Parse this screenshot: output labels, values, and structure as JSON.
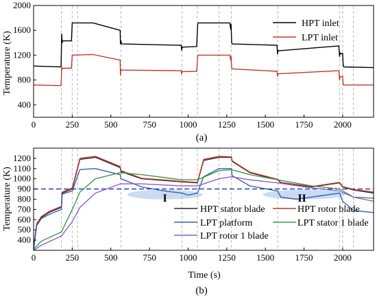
{
  "chart_data": [
    {
      "type": "line",
      "panel_label": "(a)",
      "ylabel": "Temperature (K)",
      "xlabel": "",
      "xlim": [
        0,
        2200
      ],
      "ylim": [
        200,
        2000
      ],
      "xticks": [
        0,
        250,
        500,
        750,
        1000,
        1250,
        1500,
        1750,
        2000
      ],
      "yticks": [
        400,
        800,
        1200,
        1600,
        2000
      ],
      "legend_position": "top-right",
      "vertical_markers_x": [
        180,
        250,
        285,
        565,
        960,
        1060,
        1200,
        1280,
        1580,
        1980,
        2000,
        2070
      ],
      "series": [
        {
          "name": "HPT inlet",
          "color": "#000000",
          "x": [
            0,
            178,
            182,
            185,
            188,
            245,
            250,
            385,
            560,
            562,
            565,
            570,
            955,
            958,
            962,
            970,
            1055,
            1062,
            1065,
            1200,
            1270,
            1275,
            1278,
            1282,
            1285,
            1575,
            1578,
            1582,
            1585,
            1975,
            1980,
            1983,
            1990,
            2000,
            2003,
            2006,
            2200
          ],
          "y": [
            1025,
            1010,
            1540,
            1400,
            1430,
            1430,
            1720,
            1720,
            1600,
            1380,
            1430,
            1380,
            1360,
            1280,
            1330,
            1330,
            1340,
            1700,
            1720,
            1720,
            1720,
            1620,
            1700,
            1400,
            1380,
            1360,
            1220,
            1280,
            1270,
            1350,
            1180,
            1240,
            1220,
            1230,
            1060,
            1010,
            1000
          ]
        },
        {
          "name": "LPT inlet",
          "color": "#c0392b",
          "x": [
            0,
            178,
            182,
            185,
            188,
            245,
            250,
            385,
            560,
            562,
            565,
            570,
            955,
            958,
            962,
            970,
            1055,
            1062,
            1065,
            1270,
            1275,
            1278,
            1282,
            1285,
            1575,
            1578,
            1582,
            1585,
            1975,
            1980,
            1983,
            2000,
            2003,
            2006,
            2200
          ],
          "y": [
            720,
            710,
            1000,
            980,
            990,
            990,
            1200,
            1210,
            1120,
            880,
            970,
            960,
            950,
            900,
            935,
            935,
            940,
            1180,
            1200,
            1200,
            1120,
            1180,
            1000,
            980,
            940,
            860,
            900,
            900,
            950,
            800,
            850,
            860,
            740,
            720,
            720
          ]
        }
      ]
    },
    {
      "type": "line",
      "panel_label": "(b)",
      "ylabel": "Temperature (K)",
      "xlabel": "Time (s)",
      "xlim": [
        0,
        2200
      ],
      "ylim": [
        300,
        1300
      ],
      "xticks": [
        0,
        250,
        500,
        750,
        1000,
        1250,
        1500,
        1750,
        2000
      ],
      "yticks": [
        400,
        500,
        600,
        700,
        800,
        900,
        1000,
        1100,
        1200
      ],
      "reference_line_y": 900,
      "regions": [
        {
          "label": "I",
          "x_center": 850,
          "y_center": 845
        },
        {
          "label": "II",
          "x_center": 1750,
          "y_center": 845
        }
      ],
      "legend_position": "bottom-center",
      "vertical_markers_x": [
        180,
        250,
        285,
        565,
        960,
        1060,
        1200,
        1280,
        1580,
        1980,
        2000,
        2070
      ],
      "series": [
        {
          "name": "HPT stator blade",
          "color": "#2a2a2a",
          "x": [
            0,
            20,
            50,
            100,
            180,
            185,
            250,
            300,
            400,
            560,
            565,
            700,
            960,
            1060,
            1100,
            1200,
            1280,
            1285,
            1400,
            1580,
            1600,
            1800,
            1980,
            2000,
            2070,
            2200
          ],
          "y": [
            320,
            550,
            620,
            670,
            720,
            860,
            900,
            1190,
            1210,
            1110,
            1070,
            1000,
            970,
            960,
            1180,
            1210,
            1210,
            1170,
            1060,
            990,
            960,
            920,
            960,
            920,
            890,
            860
          ]
        },
        {
          "name": "HPT rotor blade",
          "color": "#c0392b",
          "x": [
            0,
            20,
            50,
            100,
            180,
            185,
            250,
            300,
            400,
            560,
            565,
            700,
            960,
            1060,
            1100,
            1200,
            1280,
            1285,
            1400,
            1580,
            1600,
            1800,
            1980,
            2000,
            2070,
            2200
          ],
          "y": [
            330,
            560,
            630,
            680,
            730,
            870,
            910,
            1200,
            1220,
            1120,
            1080,
            1005,
            975,
            965,
            1190,
            1220,
            1215,
            1175,
            1065,
            995,
            965,
            925,
            965,
            925,
            895,
            870
          ]
        },
        {
          "name": "LPT platform",
          "color": "#2e64b0",
          "x": [
            0,
            20,
            50,
            100,
            180,
            185,
            250,
            300,
            400,
            560,
            565,
            700,
            850,
            960,
            1000,
            1060,
            1100,
            1200,
            1280,
            1285,
            1400,
            1580,
            1600,
            1700,
            1980,
            2000,
            2070,
            2200
          ],
          "y": [
            300,
            540,
            610,
            650,
            700,
            850,
            880,
            1090,
            1100,
            1040,
            1000,
            920,
            880,
            860,
            840,
            860,
            1020,
            1100,
            1100,
            1030,
            930,
            880,
            820,
            800,
            860,
            780,
            690,
            670
          ]
        },
        {
          "name": "LPT stator 1 blade",
          "color": "#3a9a4a",
          "x": [
            0,
            50,
            180,
            250,
            300,
            400,
            560,
            700,
            960,
            1060,
            1200,
            1280,
            1400,
            1580,
            1800,
            1980,
            2070,
            2200
          ],
          "y": [
            310,
            390,
            480,
            700,
            870,
            1000,
            1060,
            1040,
            990,
            990,
            1080,
            1090,
            1040,
            990,
            930,
            900,
            820,
            780
          ]
        },
        {
          "name": "LPT rotor 1 blade",
          "color": "#8e5bd0",
          "x": [
            0,
            50,
            180,
            250,
            300,
            400,
            560,
            700,
            960,
            1060,
            1200,
            1280,
            1400,
            1580,
            1800,
            1980,
            2070,
            2200
          ],
          "y": [
            300,
            350,
            440,
            580,
            720,
            860,
            950,
            950,
            930,
            930,
            1000,
            1020,
            990,
            960,
            910,
            880,
            820,
            810
          ]
        }
      ]
    }
  ]
}
